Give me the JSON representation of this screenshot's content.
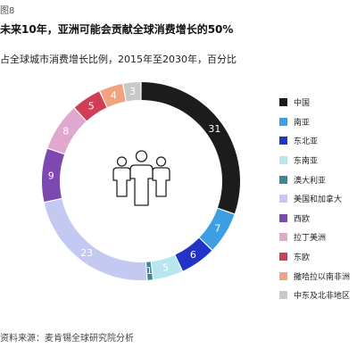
{
  "figure_label": "图8",
  "title": "未来10年，亚洲可能会贡献全球消费增长的50%",
  "subtitle": "占全球城市消费增长比例，2015年至2030年，百分比",
  "source": {
    "label": "资料来源：",
    "text": "麦肯锡全球研究院分析"
  },
  "chart_data": {
    "type": "pie",
    "donut": true,
    "center_icon": "people-group-icon",
    "legend_position": "right",
    "series": [
      {
        "name": "中国",
        "value": 31,
        "color": "#1c1c1c"
      },
      {
        "name": "南亚",
        "value": 7,
        "color": "#3d9ee3"
      },
      {
        "name": "东北亚",
        "value": 6,
        "color": "#2233c8"
      },
      {
        "name": "东南亚",
        "value": 5,
        "color": "#b8e6ee"
      },
      {
        "name": "澳大利亚",
        "value": 1,
        "color": "#3f8694"
      },
      {
        "name": "美国和加拿大",
        "value": 23,
        "color": "#c3c9f1"
      },
      {
        "name": "西欧",
        "value": 9,
        "color": "#7d49b1"
      },
      {
        "name": "拉丁美洲",
        "value": 8,
        "color": "#e0a7cf"
      },
      {
        "name": "东欧",
        "value": 5,
        "color": "#cf3e54"
      },
      {
        "name": "撒哈拉以南非洲",
        "value": 4,
        "color": "#f0a37d"
      },
      {
        "name": "中东及北非地区",
        "value": 3,
        "color": "#c9c9c9"
      }
    ]
  }
}
